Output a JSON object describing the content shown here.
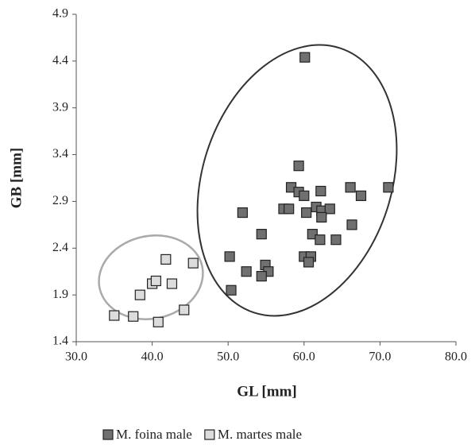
{
  "chart_data": {
    "type": "scatter",
    "x_label": "GL [mm]",
    "y_label": "GB [mm]",
    "xlim": [
      30,
      80
    ],
    "xticks": [
      {
        "value": 30,
        "label": "30.0"
      },
      {
        "value": 40,
        "label": "40.0"
      },
      {
        "value": 50,
        "label": "50.0"
      },
      {
        "value": 60,
        "label": "60.0"
      },
      {
        "value": 70,
        "label": "70.0"
      },
      {
        "value": 80,
        "label": "80.0"
      }
    ],
    "ylim": [
      1.4,
      4.9
    ],
    "yticks": [
      1.4,
      1.9,
      2.4,
      2.9,
      3.4,
      3.9,
      4.4,
      4.9
    ],
    "series": [
      {
        "name": "M. foina male",
        "color": "#707070",
        "x": [
          60.1,
          71.1,
          66.1,
          67.5,
          59.3,
          58.3,
          59.3,
          60.0,
          62.2,
          51.9,
          57.3,
          58.0,
          60.3,
          61.6,
          62.3,
          63.4,
          62.3,
          66.3,
          54.4,
          61.1,
          62.1,
          64.2,
          50.2,
          60.0,
          60.9,
          60.6,
          54.9,
          52.4,
          55.3,
          54.4,
          50.4
        ],
        "y": [
          4.44,
          3.05,
          3.05,
          2.96,
          3.28,
          3.05,
          3.0,
          2.96,
          3.01,
          2.78,
          2.82,
          2.82,
          2.78,
          2.84,
          2.8,
          2.82,
          2.73,
          2.65,
          2.55,
          2.55,
          2.49,
          2.49,
          2.31,
          2.31,
          2.31,
          2.25,
          2.22,
          2.15,
          2.15,
          2.1,
          1.95
        ]
      },
      {
        "name": "M. martes male",
        "color": "#dcdcdc",
        "x": [
          35.0,
          37.5,
          40.8,
          44.2,
          38.4,
          40.0,
          40.5,
          42.6,
          41.8,
          45.4
        ],
        "y": [
          1.68,
          1.67,
          1.61,
          1.74,
          1.9,
          2.02,
          2.05,
          2.02,
          2.28,
          2.24
        ]
      }
    ]
  }
}
